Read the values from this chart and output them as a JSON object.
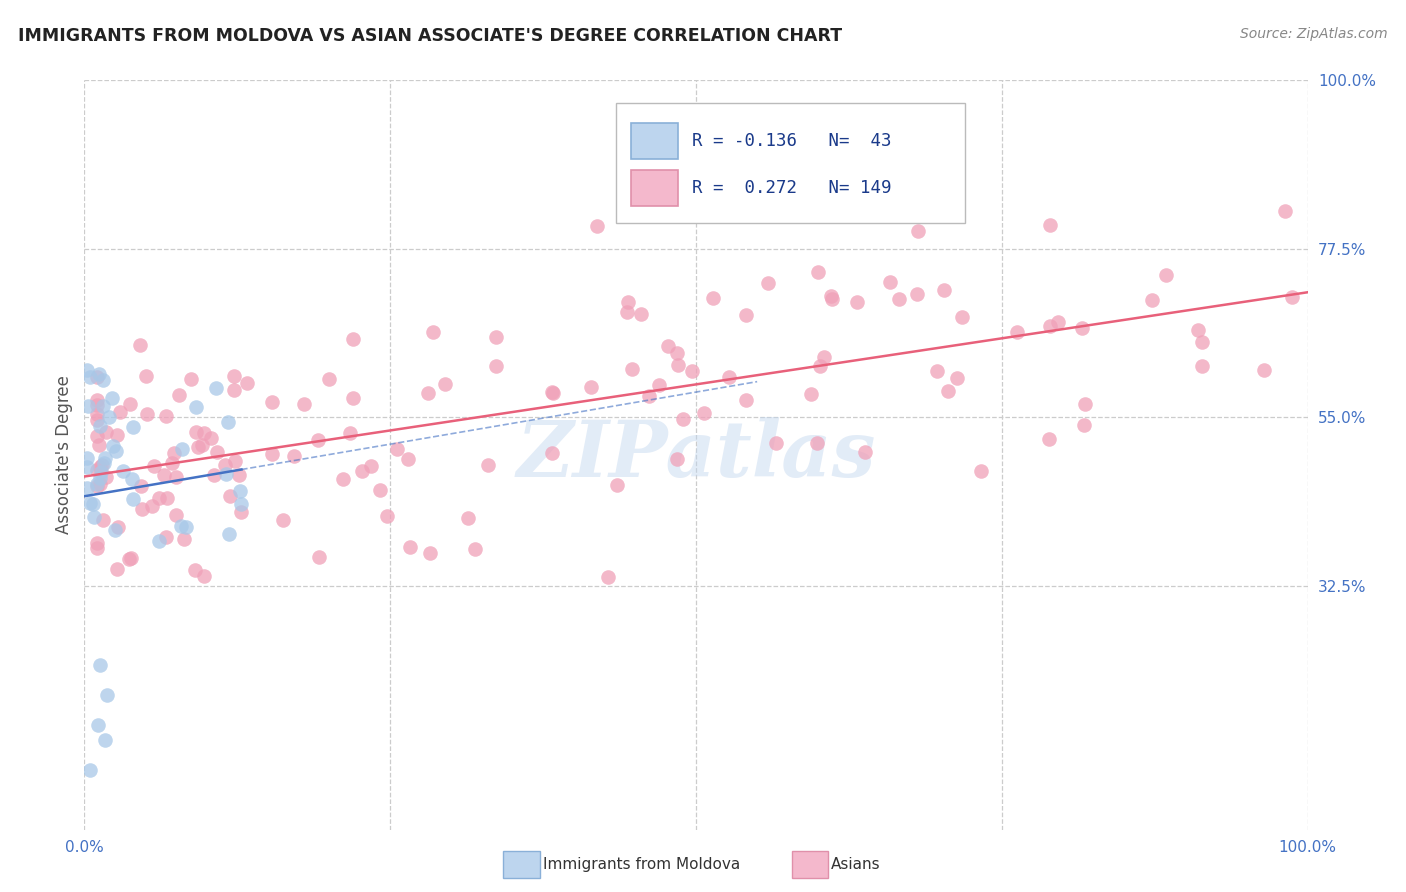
{
  "title": "IMMIGRANTS FROM MOLDOVA VS ASIAN ASSOCIATE'S DEGREE CORRELATION CHART",
  "source": "Source: ZipAtlas.com",
  "ylabel": "Associate's Degree",
  "blue_color": "#A8C8E8",
  "pink_color": "#F0A0B8",
  "blue_line_color": "#4472C4",
  "pink_line_color": "#E8607A",
  "watermark": "ZIPatlas",
  "background_color": "#FFFFFF",
  "grid_color": "#CCCCCC",
  "legend_text_color": "#1a3a8a",
  "axis_text_color": "#4472C4",
  "title_color": "#222222",
  "source_color": "#888888"
}
